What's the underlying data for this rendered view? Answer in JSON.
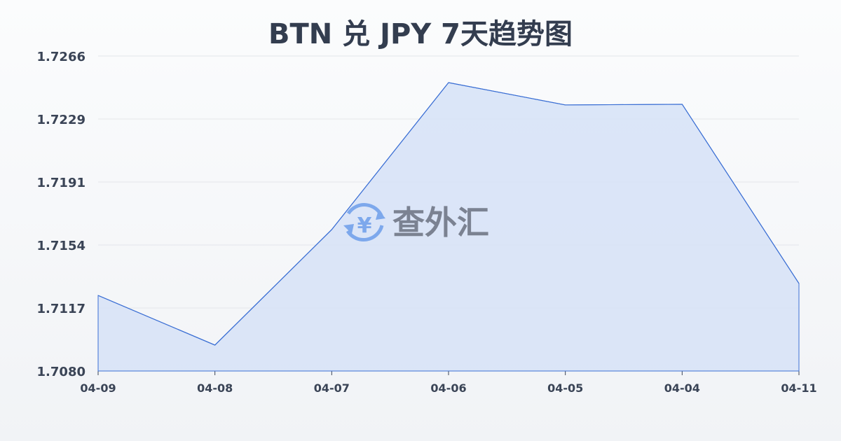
{
  "chart_data": {
    "type": "area",
    "title": "BTN 兑 JPY 7天趋势图",
    "categories": [
      "04-09",
      "04-08",
      "04-07",
      "04-06",
      "04-05",
      "04-04",
      "04-11"
    ],
    "values": [
      1.71246,
      1.70953,
      1.71635,
      1.72503,
      1.72371,
      1.72375,
      1.71317
    ],
    "yticks": [
      "1.7266",
      "1.7229",
      "1.7191",
      "1.7154",
      "1.7117",
      "1.7080"
    ],
    "ylim": [
      1.708,
      1.7266
    ],
    "grid": true,
    "colors": {
      "line": "#3b6fd4",
      "fill": "#d6e2f7",
      "grid": "#e3e6ea"
    }
  },
  "watermark": {
    "text": "查外汇",
    "icon": "yen-exchange-icon",
    "color": "#7da8ec"
  }
}
